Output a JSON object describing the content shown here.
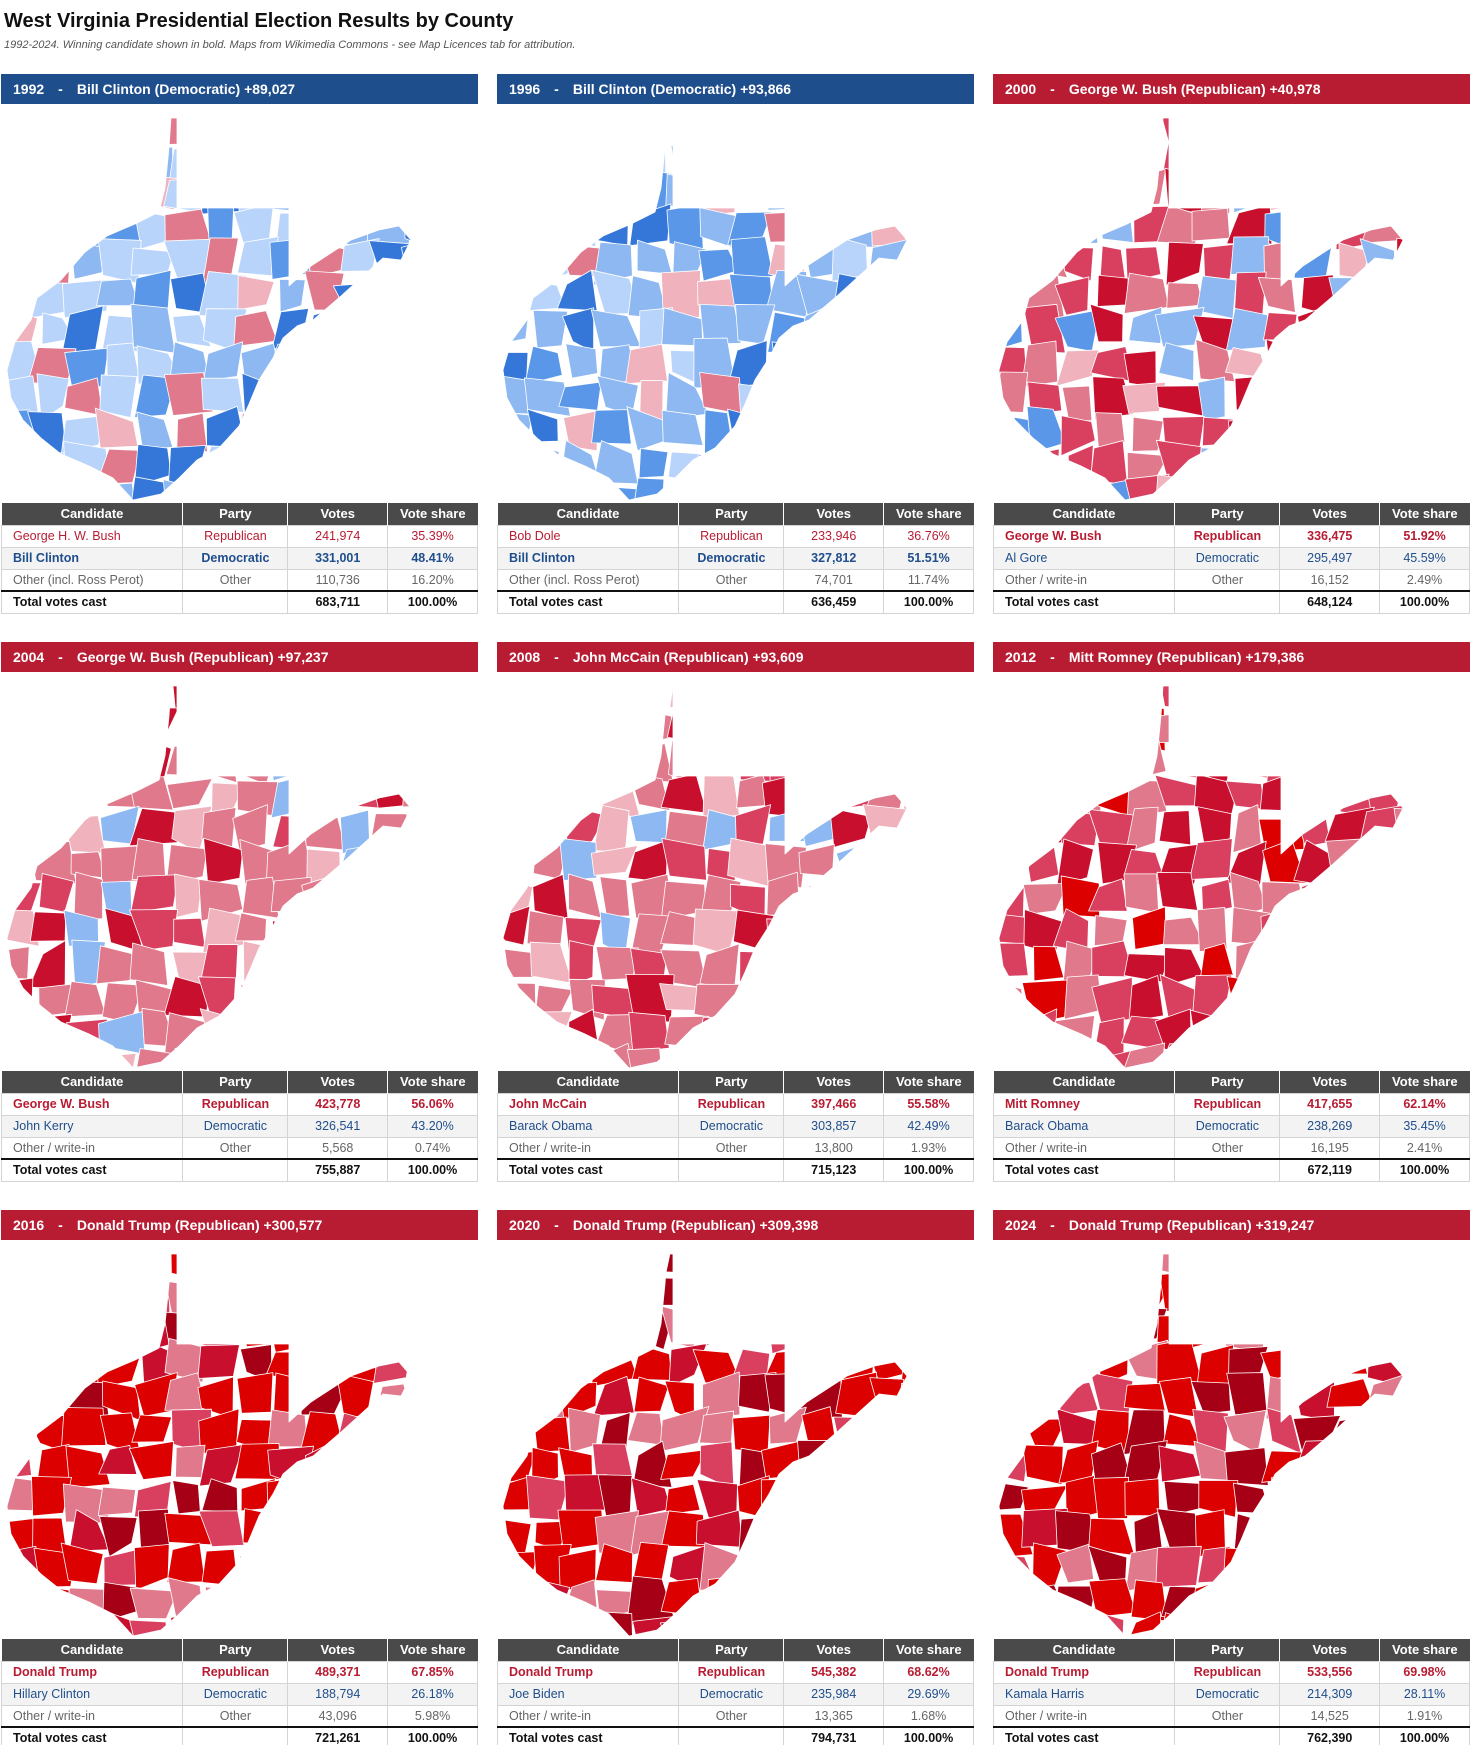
{
  "header": {
    "title": "West Virginia Presidential Election Results by County",
    "subtitle": "1992-2024. Winning candidate shown in bold. Maps from Wikimedia Commons - see Map Licences tab for attribution."
  },
  "columns": [
    "Candidate",
    "Party",
    "Votes",
    "Vote share"
  ],
  "colors": {
    "democratic": "#1f4e8c",
    "republican": "#b81c33",
    "header": "#4a4a4a"
  },
  "elections": [
    {
      "year": "1992",
      "dash": "-",
      "headline": "Bill Clinton (Democratic) +89,027",
      "winner_party": "dem",
      "map_mix": [
        "#b9d4fb",
        "#b9d4fb",
        "#8db8f1",
        "#8db8f1",
        "#5a97e8",
        "#3577d8",
        "#f0b3bd",
        "#e0798c"
      ],
      "rows": [
        {
          "candidate": "George H. W. Bush",
          "party": "Republican",
          "votes": "241,974",
          "share": "35.39%",
          "cls": "rep"
        },
        {
          "candidate": "Bill Clinton",
          "party": "Democratic",
          "votes": "331,001",
          "share": "48.41%",
          "cls": "dem win"
        },
        {
          "candidate": "Other (incl. Ross Perot)",
          "party": "Other",
          "votes": "110,736",
          "share": "16.20%",
          "cls": "oth"
        }
      ],
      "total": {
        "label": "Total votes cast",
        "votes": "683,711",
        "share": "100.00%"
      }
    },
    {
      "year": "1996",
      "dash": "-",
      "headline": "Bill Clinton (Democratic) +93,866",
      "winner_party": "dem",
      "map_mix": [
        "#b9d4fb",
        "#8db8f1",
        "#8db8f1",
        "#5a97e8",
        "#5a97e8",
        "#3577d8",
        "#f0b3bd",
        "#e0798c"
      ],
      "rows": [
        {
          "candidate": "Bob Dole",
          "party": "Republican",
          "votes": "233,946",
          "share": "36.76%",
          "cls": "rep"
        },
        {
          "candidate": "Bill Clinton",
          "party": "Democratic",
          "votes": "327,812",
          "share": "51.51%",
          "cls": "dem win"
        },
        {
          "candidate": "Other (incl. Ross Perot)",
          "party": "Other",
          "votes": "74,701",
          "share": "11.74%",
          "cls": "oth"
        }
      ],
      "total": {
        "label": "Total votes cast",
        "votes": "636,459",
        "share": "100.00%"
      }
    },
    {
      "year": "2000",
      "dash": "-",
      "headline": "George W. Bush (Republican) +40,978",
      "winner_party": "rep",
      "map_mix": [
        "#e0798c",
        "#e0798c",
        "#d94060",
        "#d94060",
        "#c8102e",
        "#8db8f1",
        "#5a97e8",
        "#f0b3bd"
      ],
      "rows": [
        {
          "candidate": "George W. Bush",
          "party": "Republican",
          "votes": "336,475",
          "share": "51.92%",
          "cls": "rep win"
        },
        {
          "candidate": "Al Gore",
          "party": "Democratic",
          "votes": "295,497",
          "share": "45.59%",
          "cls": "dem"
        },
        {
          "candidate": "Other / write-in",
          "party": "Other",
          "votes": "16,152",
          "share": "2.49%",
          "cls": "oth"
        }
      ],
      "total": {
        "label": "Total votes cast",
        "votes": "648,124",
        "share": "100.00%"
      }
    },
    {
      "year": "2004",
      "dash": "-",
      "headline": "George W. Bush (Republican) +97,237",
      "winner_party": "rep",
      "map_mix": [
        "#e0798c",
        "#e0798c",
        "#d94060",
        "#d94060",
        "#c8102e",
        "#8db8f1",
        "#e0798c",
        "#f0b3bd"
      ],
      "rows": [
        {
          "candidate": "George W. Bush",
          "party": "Republican",
          "votes": "423,778",
          "share": "56.06%",
          "cls": "rep win"
        },
        {
          "candidate": "John Kerry",
          "party": "Democratic",
          "votes": "326,541",
          "share": "43.20%",
          "cls": "dem"
        },
        {
          "candidate": "Other / write-in",
          "party": "Other",
          "votes": "5,568",
          "share": "0.74%",
          "cls": "oth"
        }
      ],
      "total": {
        "label": "Total votes cast",
        "votes": "755,887",
        "share": "100.00%"
      }
    },
    {
      "year": "2008",
      "dash": "-",
      "headline": "John McCain (Republican) +93,609",
      "winner_party": "rep",
      "map_mix": [
        "#e0798c",
        "#e0798c",
        "#d94060",
        "#d94060",
        "#c8102e",
        "#8db8f1",
        "#f0b3bd",
        "#e0798c"
      ],
      "rows": [
        {
          "candidate": "John McCain",
          "party": "Republican",
          "votes": "397,466",
          "share": "55.58%",
          "cls": "rep win"
        },
        {
          "candidate": "Barack Obama",
          "party": "Democratic",
          "votes": "303,857",
          "share": "42.49%",
          "cls": "dem"
        },
        {
          "candidate": "Other / write-in",
          "party": "Other",
          "votes": "13,800",
          "share": "1.93%",
          "cls": "oth"
        }
      ],
      "total": {
        "label": "Total votes cast",
        "votes": "715,123",
        "share": "100.00%"
      }
    },
    {
      "year": "2012",
      "dash": "-",
      "headline": "Mitt Romney (Republican) +179,386",
      "winner_party": "rep",
      "map_mix": [
        "#d94060",
        "#d94060",
        "#d94060",
        "#c8102e",
        "#c8102e",
        "#e0798c",
        "#e0798c",
        "#dc0000"
      ],
      "rows": [
        {
          "candidate": "Mitt Romney",
          "party": "Republican",
          "votes": "417,655",
          "share": "62.14%",
          "cls": "rep win"
        },
        {
          "candidate": "Barack Obama",
          "party": "Democratic",
          "votes": "238,269",
          "share": "35.45%",
          "cls": "dem"
        },
        {
          "candidate": "Other / write-in",
          "party": "Other",
          "votes": "16,195",
          "share": "2.41%",
          "cls": "oth"
        }
      ],
      "total": {
        "label": "Total votes cast",
        "votes": "672,119",
        "share": "100.00%"
      }
    },
    {
      "year": "2016",
      "dash": "-",
      "headline": "Donald Trump (Republican) +300,577",
      "winner_party": "rep",
      "map_mix": [
        "#dc0000",
        "#dc0000",
        "#dc0000",
        "#c8102e",
        "#a50015",
        "#d94060",
        "#e0798c",
        "#dc0000"
      ],
      "rows": [
        {
          "candidate": "Donald Trump",
          "party": "Republican",
          "votes": "489,371",
          "share": "67.85%",
          "cls": "rep win"
        },
        {
          "candidate": "Hillary Clinton",
          "party": "Democratic",
          "votes": "188,794",
          "share": "26.18%",
          "cls": "dem"
        },
        {
          "candidate": "Other / write-in",
          "party": "Other",
          "votes": "43,096",
          "share": "5.98%",
          "cls": "oth"
        }
      ],
      "total": {
        "label": "Total votes cast",
        "votes": "721,261",
        "share": "100.00%"
      }
    },
    {
      "year": "2020",
      "dash": "-",
      "headline": "Donald Trump (Republican) +309,398",
      "winner_party": "rep",
      "map_mix": [
        "#dc0000",
        "#dc0000",
        "#dc0000",
        "#c8102e",
        "#a50015",
        "#d94060",
        "#e0798c",
        "#a50015"
      ],
      "rows": [
        {
          "candidate": "Donald Trump",
          "party": "Republican",
          "votes": "545,382",
          "share": "68.62%",
          "cls": "rep win"
        },
        {
          "candidate": "Joe Biden",
          "party": "Democratic",
          "votes": "235,984",
          "share": "29.69%",
          "cls": "dem"
        },
        {
          "candidate": "Other / write-in",
          "party": "Other",
          "votes": "13,365",
          "share": "1.68%",
          "cls": "oth"
        }
      ],
      "total": {
        "label": "Total votes cast",
        "votes": "794,731",
        "share": "100.00%"
      }
    },
    {
      "year": "2024",
      "dash": "-",
      "headline": "Donald Trump (Republican) +319,247",
      "winner_party": "rep",
      "map_mix": [
        "#dc0000",
        "#dc0000",
        "#dc0000",
        "#c8102e",
        "#a50015",
        "#d94060",
        "#e0798c",
        "#a50015"
      ],
      "rows": [
        {
          "candidate": "Donald Trump",
          "party": "Republican",
          "votes": "533,556",
          "share": "69.98%",
          "cls": "rep win"
        },
        {
          "candidate": "Kamala Harris",
          "party": "Democratic",
          "votes": "214,309",
          "share": "28.11%",
          "cls": "dem"
        },
        {
          "candidate": "Other / write-in",
          "party": "Other",
          "votes": "14,525",
          "share": "1.91%",
          "cls": "oth"
        }
      ],
      "total": {
        "label": "Total votes cast",
        "votes": "762,390",
        "share": "100.00%"
      }
    }
  ]
}
